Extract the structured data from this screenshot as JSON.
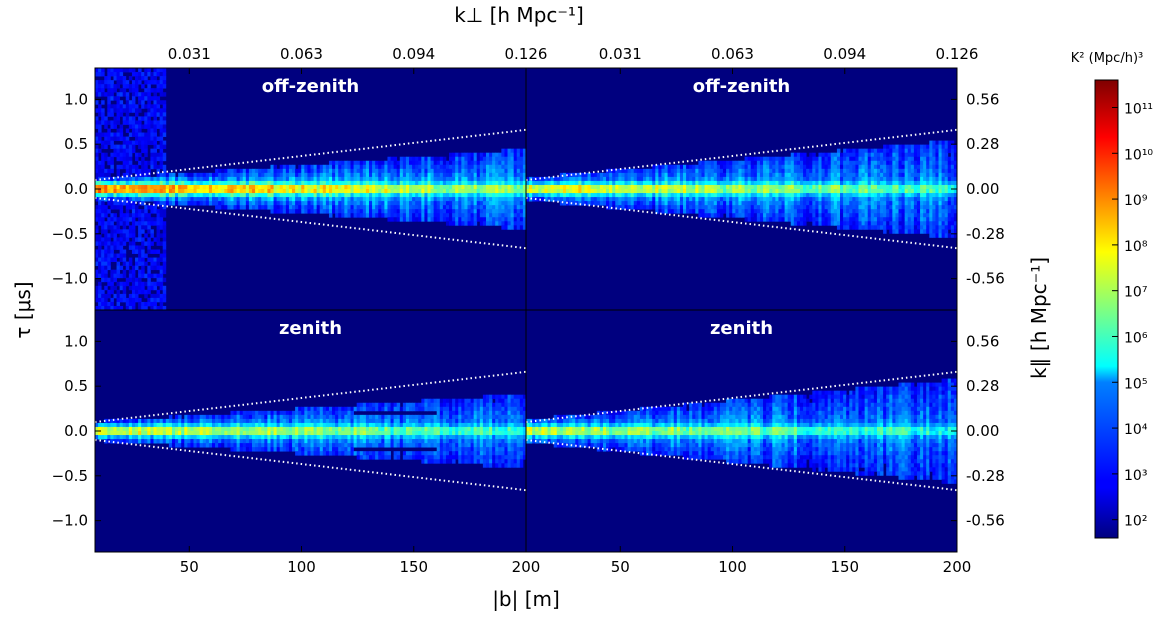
{
  "chart_data": {
    "type": "heatmap",
    "x_axis": {
      "label": "|b| [m]",
      "range": [
        8,
        200
      ],
      "ticks": [
        {
          "value": 50,
          "label": "50"
        },
        {
          "value": 100,
          "label": "100"
        },
        {
          "value": 150,
          "label": "150"
        },
        {
          "value": 200,
          "label": "200"
        }
      ]
    },
    "x_axis_top": {
      "label": "k⊥ [h Mpc⁻¹]",
      "ticks": [
        {
          "value": 50,
          "label": "0.031"
        },
        {
          "value": 100,
          "label": "0.063"
        },
        {
          "value": 150,
          "label": "0.094"
        },
        {
          "value": 200,
          "label": "0.126"
        }
      ]
    },
    "y_axis_left": {
      "label": "τ [μs]",
      "range": [
        -1.35,
        1.35
      ],
      "ticks": [
        {
          "value": 1.0,
          "label": "1.0"
        },
        {
          "value": 0.5,
          "label": "0.5"
        },
        {
          "value": 0.0,
          "label": "0.0"
        },
        {
          "value": -0.5,
          "label": "−0.5"
        },
        {
          "value": -1.0,
          "label": "−1.0"
        }
      ]
    },
    "y_axis_right": {
      "label": "k∥ [h Mpc⁻¹]",
      "ticks": [
        {
          "value": 1.0,
          "label": "0.56"
        },
        {
          "value": 0.5,
          "label": "0.28"
        },
        {
          "value": 0.0,
          "label": "0.00"
        },
        {
          "value": -0.5,
          "label": "-0.28"
        },
        {
          "value": -1.0,
          "label": "-0.56"
        }
      ]
    },
    "horizon_line": {
      "description": "white dotted wedge boundary",
      "points": [
        [
          8,
          0.1
        ],
        [
          200,
          0.66
        ]
      ]
    },
    "panels": [
      {
        "title": "off-zenith",
        "row": 0,
        "col": 0,
        "peak_log10": 10.3,
        "spread": 0.6,
        "gap_at": null
      },
      {
        "title": "off-zenith",
        "row": 0,
        "col": 1,
        "peak_log10": 8.6,
        "spread": 0.75,
        "gap_at": null
      },
      {
        "title": "zenith",
        "row": 1,
        "col": 0,
        "peak_log10": 8.4,
        "spread": 0.55,
        "gap_at": 125
      },
      {
        "title": "zenith",
        "row": 1,
        "col": 1,
        "peak_log10": 7.8,
        "spread": 0.8,
        "gap_at": null
      }
    ],
    "colorbar": {
      "label": "K² (Mpc/h)³",
      "scale": "log",
      "range_log10": [
        1.6,
        11.6
      ],
      "ticks": [
        {
          "exp": 11,
          "label": "10¹¹"
        },
        {
          "exp": 10,
          "label": "10¹⁰"
        },
        {
          "exp": 9,
          "label": "10⁹"
        },
        {
          "exp": 8,
          "label": "10⁸"
        },
        {
          "exp": 7,
          "label": "10⁷"
        },
        {
          "exp": 6,
          "label": "10⁶"
        },
        {
          "exp": 5,
          "label": "10⁵"
        },
        {
          "exp": 4,
          "label": "10⁴"
        },
        {
          "exp": 3,
          "label": "10³"
        },
        {
          "exp": 2,
          "label": "10²"
        }
      ],
      "colormap": "jet",
      "background_color": "#00007f"
    }
  }
}
